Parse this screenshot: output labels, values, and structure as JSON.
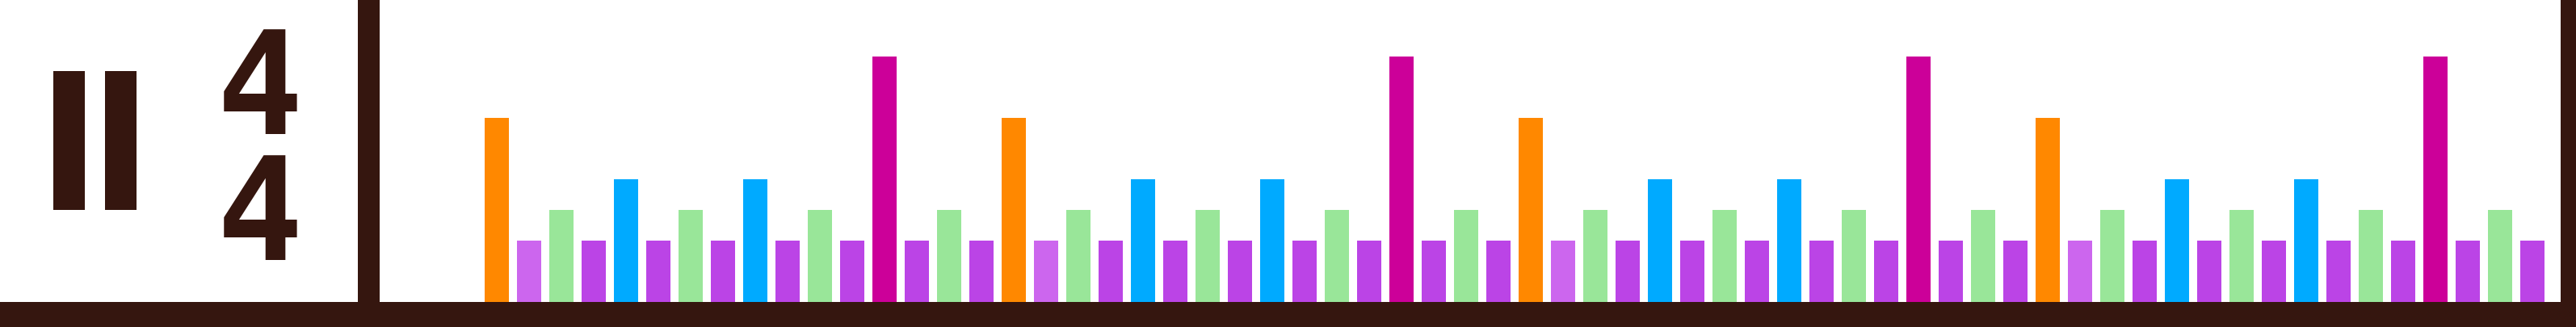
{
  "theme": {
    "background": "#ffffff",
    "frame": "#35160f"
  },
  "time_signature": {
    "numerator": "4",
    "denominator": "4"
  },
  "beat_grid": {
    "measures": 4,
    "steps_per_measure": 16,
    "palette": {
      "orange": "#ff8800",
      "magenta": "#cc0099",
      "cyan": "#00aaff",
      "green": "#99e699",
      "light-purple": "#cc66ee",
      "purple": "#bb44e6"
    },
    "max_level": 4,
    "levels": {
      "orange": 3,
      "magenta": 4,
      "cyan": 2,
      "green": 1.5,
      "light-purple": 1,
      "purple": 1
    },
    "measure_pattern": [
      "orange",
      "light-purple",
      "green",
      "purple",
      "cyan",
      "purple",
      "green",
      "purple",
      "cyan",
      "purple",
      "green",
      "purple",
      "magenta",
      "purple",
      "green",
      "purple"
    ]
  }
}
